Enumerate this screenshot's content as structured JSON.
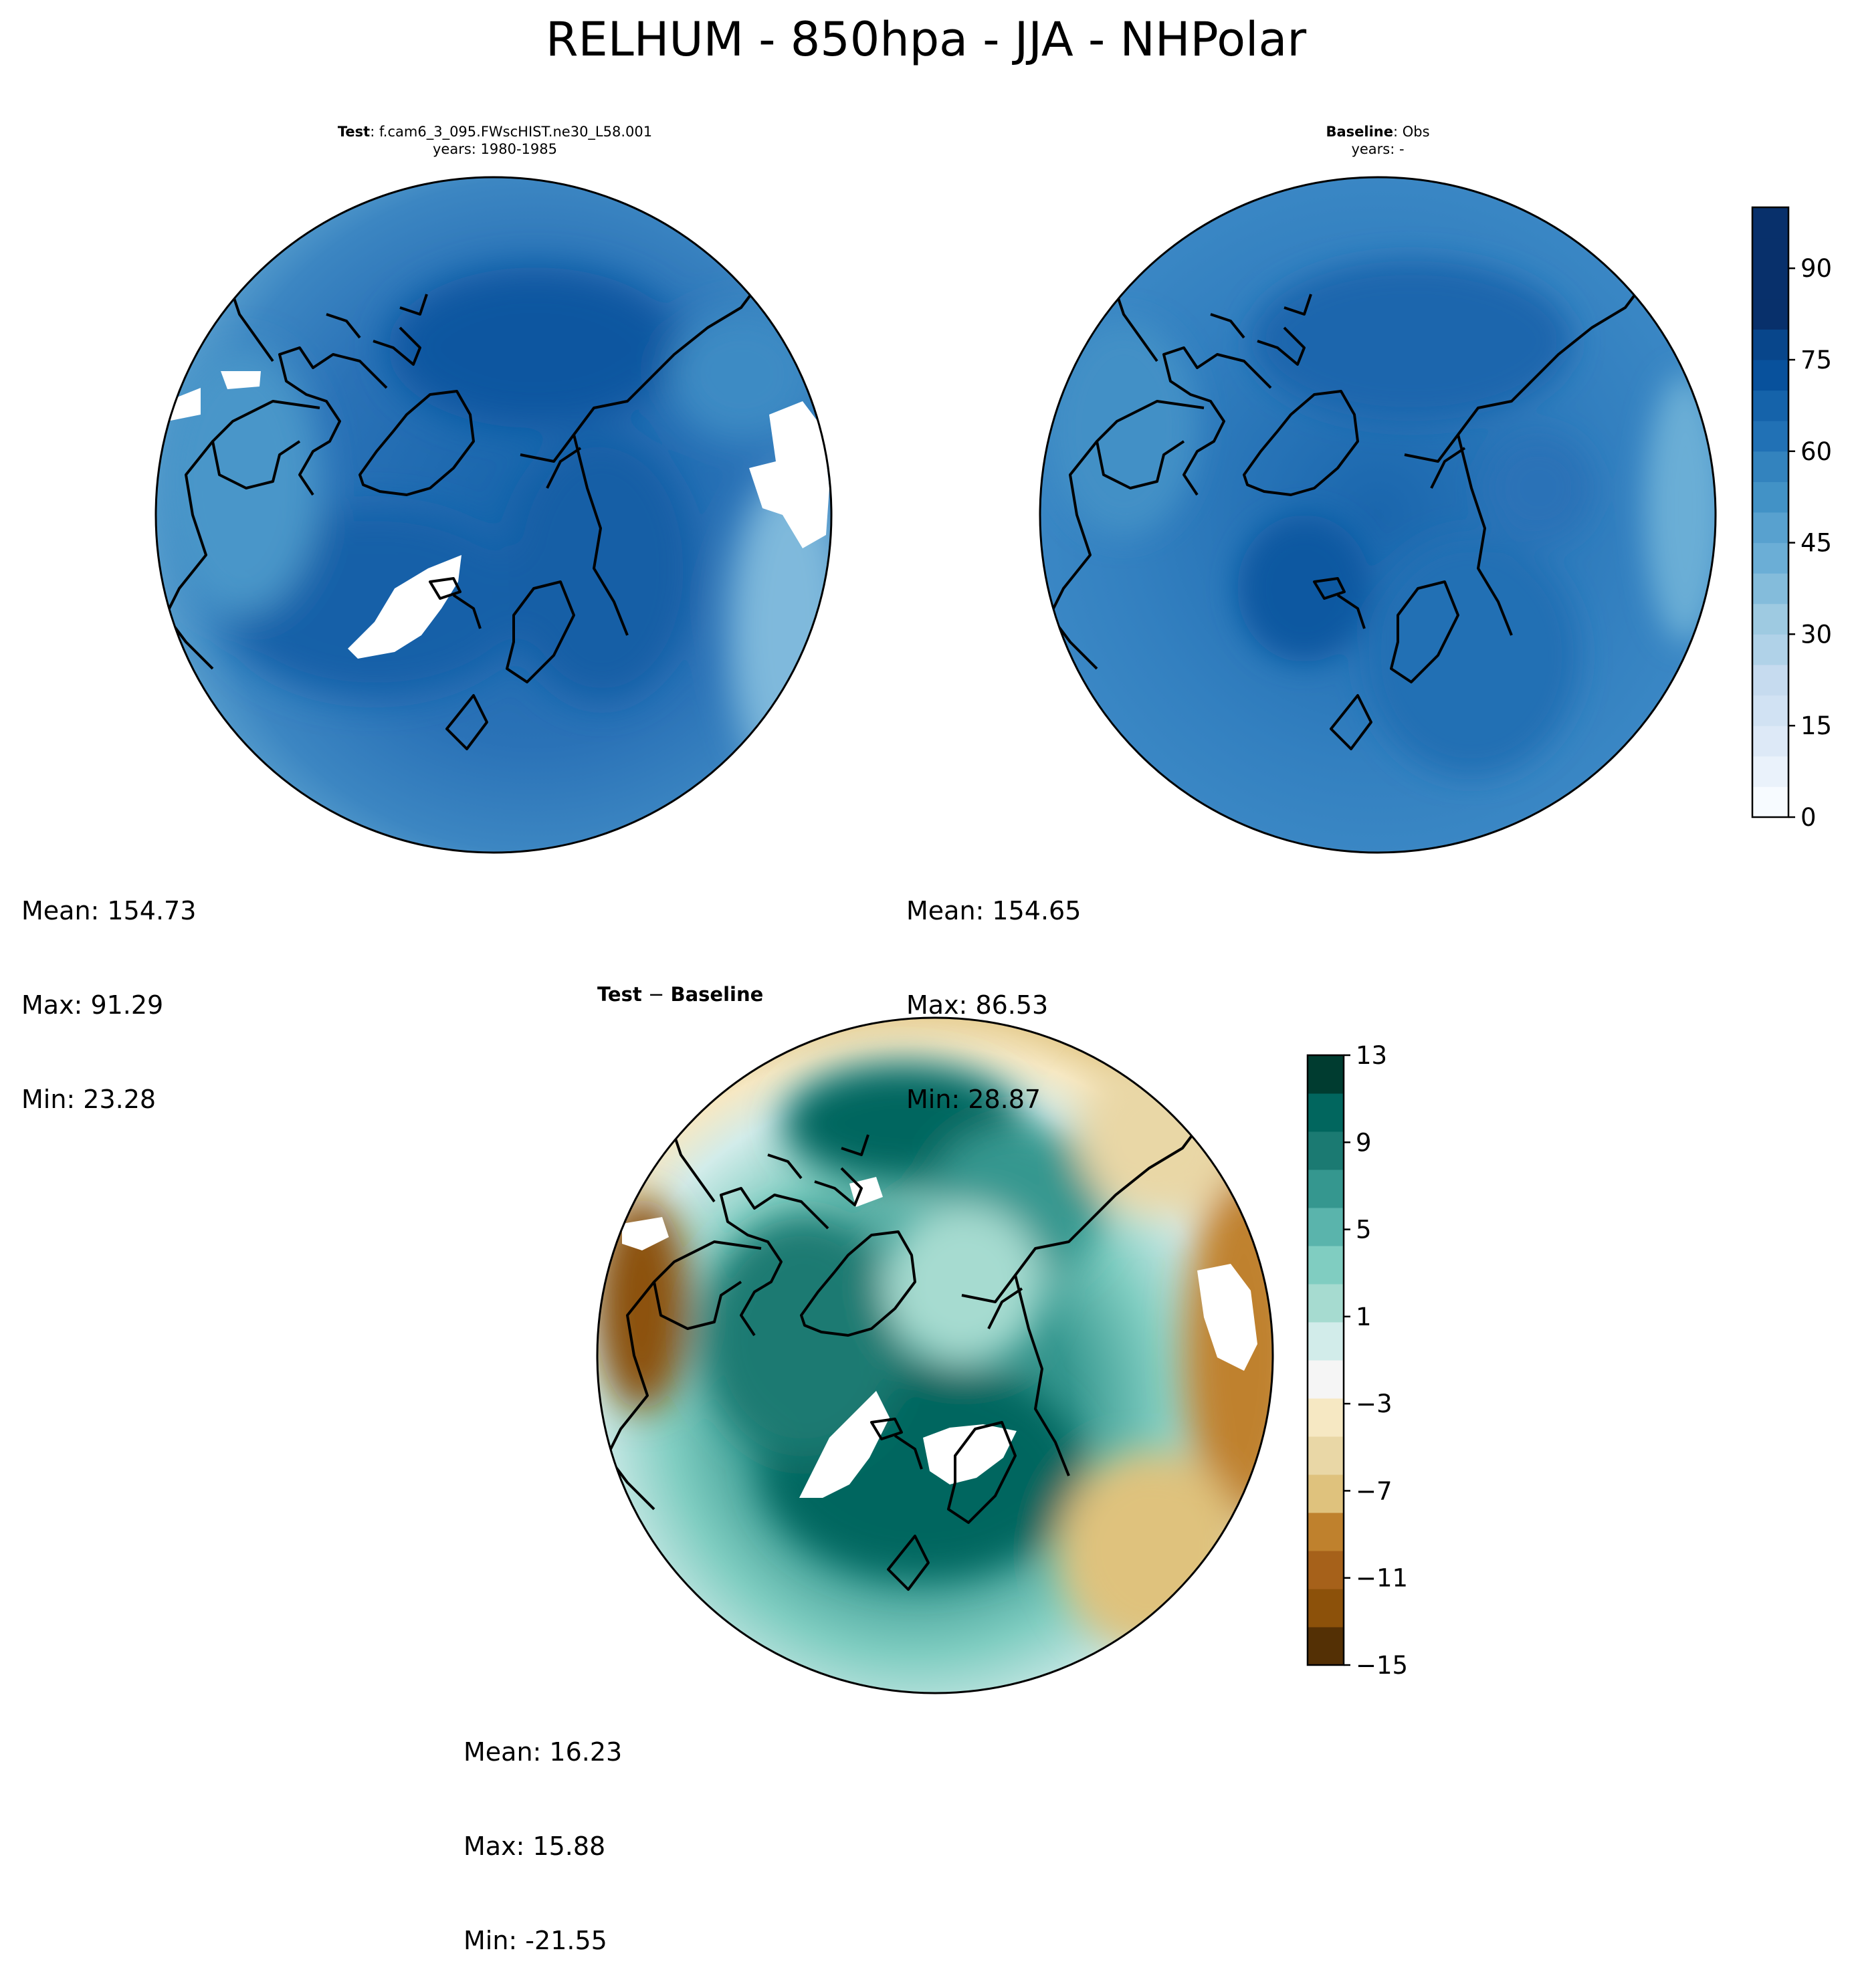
{
  "figure": {
    "title": "RELHUM - 850hpa - JJA - NHPolar"
  },
  "panels": {
    "test": {
      "label_bold": "Test",
      "label_rest": ": f.cam6_3_095.FWscHIST.ne30_L58.001",
      "years": "years: 1980-1985",
      "stats": {
        "mean": "Mean: 154.73",
        "max": "Max: 91.29",
        "min": "Min: 23.28"
      }
    },
    "baseline": {
      "label_bold": "Baseline",
      "label_rest": ": Obs",
      "years": "years: -",
      "stats": {
        "mean": "Mean: 154.65",
        "max": "Max: 86.53",
        "min": "Min: 28.87"
      }
    },
    "difference": {
      "label_bold_a": "Test",
      "label_op": " − ",
      "label_bold_b": "Baseline",
      "stats": {
        "mean": "Mean: 16.23",
        "max": "Max: 15.88",
        "min": "Min: -21.55"
      }
    }
  },
  "colorbars": {
    "field": {
      "colormap": "Blues",
      "range": [
        0,
        100
      ],
      "levels": 20,
      "tick_labels": [
        "0",
        "15",
        "30",
        "45",
        "60",
        "75",
        "90"
      ],
      "colors": [
        "#f7fbff",
        "#eaf2fb",
        "#dde9f7",
        "#d1e2f3",
        "#c6dbef",
        "#b0d2e8",
        "#9ecae1",
        "#84bcdb",
        "#6baed6",
        "#58a1cf",
        "#4292c6",
        "#3383be",
        "#2171b5",
        "#1563aa",
        "#08519c",
        "#08468b",
        "#08306b",
        "#08306b",
        "#08306b",
        "#08306b"
      ]
    },
    "difference": {
      "colormap": "BrBG",
      "range": [
        -15,
        13
      ],
      "tick_labels": [
        "−15",
        "−11",
        "−7",
        "−3",
        "1",
        "5",
        "9",
        "13"
      ],
      "colors": [
        "#543005",
        "#8c510a",
        "#a6611a",
        "#bf812d",
        "#dfc27d",
        "#e9d7a6",
        "#f6e8c3",
        "#f5f5f5",
        "#d2ecea",
        "#a6dbd0",
        "#80cdc1",
        "#5ab4ac",
        "#35978f",
        "#1b7a72",
        "#01665e",
        "#003c30"
      ]
    }
  },
  "chart_data": [
    {
      "type": "heatmap",
      "title": "Test: f.cam6_3_095.FWscHIST.ne30_L58.001",
      "subtitle": "years: 1980-1985",
      "projection": "North Polar Stereographic",
      "colorbar_range": [
        0,
        100
      ],
      "stats": {
        "mean": 154.73,
        "max": 91.29,
        "min": 23.28
      }
    },
    {
      "type": "heatmap",
      "title": "Baseline: Obs",
      "subtitle": "years: -",
      "projection": "North Polar Stereographic",
      "colorbar_range": [
        0,
        100
      ],
      "stats": {
        "mean": 154.65,
        "max": 86.53,
        "min": 28.87
      }
    },
    {
      "type": "heatmap",
      "title": "Test − Baseline",
      "projection": "North Polar Stereographic",
      "colorbar_range": [
        -15,
        13
      ],
      "stats": {
        "mean": 16.23,
        "max": 15.88,
        "min": -21.55
      }
    }
  ]
}
